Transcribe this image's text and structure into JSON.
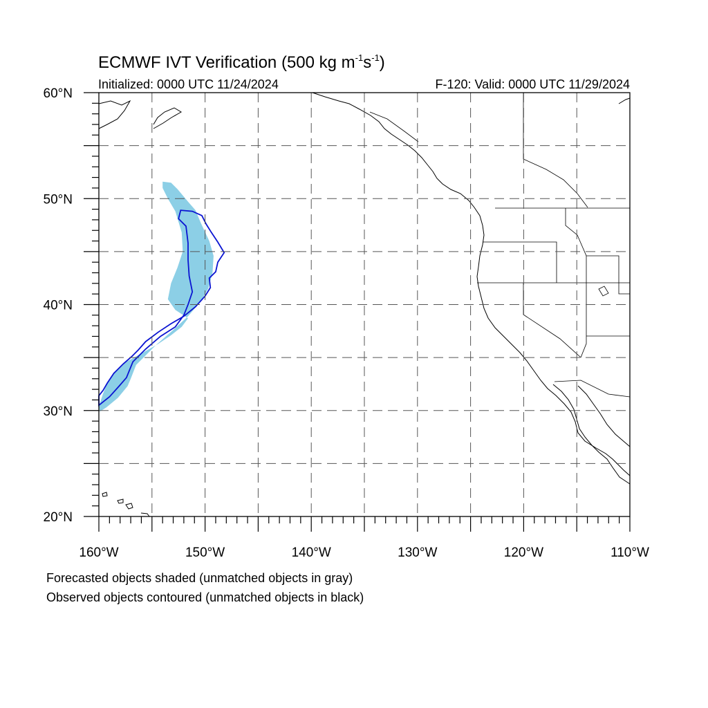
{
  "map": {
    "title": {
      "main": "ECMWF IVT Verification (500 kg m",
      "exp1": "-1",
      "mid": "s",
      "exp2": "-1",
      "close": ")"
    },
    "initialized": "Initialized: 0000 UTC 11/24/2024",
    "valid": "F-120: Valid: 0000 UTC 11/29/2024",
    "extent": {
      "lon": [
        -160,
        -110
      ],
      "lat": [
        20,
        60
      ]
    },
    "lat_labels": [
      {
        "value": 60,
        "text": "60°N"
      },
      {
        "value": 50,
        "text": "50°N"
      },
      {
        "value": 40,
        "text": "40°N"
      },
      {
        "value": 30,
        "text": "30°N"
      },
      {
        "value": 20,
        "text": "20°N"
      }
    ],
    "lon_labels": [
      {
        "value": -160,
        "text": "160°W"
      },
      {
        "value": -150,
        "text": "150°W"
      },
      {
        "value": -140,
        "text": "140°W"
      },
      {
        "value": -130,
        "text": "130°W"
      },
      {
        "value": -120,
        "text": "120°W"
      },
      {
        "value": -110,
        "text": "110°W"
      }
    ],
    "gridlines": {
      "lon": [
        -155,
        -150,
        -145,
        -140,
        -135,
        -130,
        -125,
        -120,
        -115
      ],
      "lat": [
        25,
        30,
        35,
        40,
        45,
        50,
        55
      ],
      "style": "dashed"
    },
    "colors": {
      "forecast_fill": "#8ccfe6",
      "observed_contour": "#0a14d2",
      "coastline": "#000000",
      "grid": "#555555"
    },
    "forecast_object": [
      [
        -154.0,
        51.6
      ],
      [
        -153.2,
        51.5
      ],
      [
        -152.6,
        50.9
      ],
      [
        -151.6,
        49.7
      ],
      [
        -150.9,
        48.9
      ],
      [
        -150.4,
        47.7
      ],
      [
        -149.6,
        46.0
      ],
      [
        -149.2,
        44.6
      ],
      [
        -149.3,
        43.0
      ],
      [
        -149.7,
        41.5
      ],
      [
        -150.4,
        40.3
      ],
      [
        -151.6,
        38.9
      ],
      [
        -153.0,
        37.6
      ],
      [
        -154.6,
        36.2
      ],
      [
        -155.6,
        35.2
      ],
      [
        -156.5,
        34.3
      ],
      [
        -157.0,
        33.0
      ],
      [
        -157.3,
        32.3
      ],
      [
        -158.2,
        31.2
      ],
      [
        -159.3,
        30.3
      ],
      [
        -159.9,
        29.9
      ],
      [
        -160.0,
        30.4
      ],
      [
        -159.6,
        31.6
      ],
      [
        -159.2,
        32.6
      ],
      [
        -158.6,
        33.6
      ],
      [
        -157.4,
        34.6
      ],
      [
        -155.8,
        35.5
      ],
      [
        -154.4,
        36.3
      ],
      [
        -153.2,
        37.1
      ],
      [
        -152.2,
        37.9
      ],
      [
        -151.6,
        38.7
      ],
      [
        -152.8,
        39.5
      ],
      [
        -153.5,
        40.5
      ],
      [
        -153.2,
        42.0
      ],
      [
        -152.6,
        43.5
      ],
      [
        -152.1,
        45.0
      ],
      [
        -152.2,
        46.8
      ],
      [
        -152.8,
        48.8
      ],
      [
        -153.5,
        50.0
      ],
      [
        -154.0,
        51.0
      ]
    ],
    "observed_object": [
      [
        -152.3,
        48.9
      ],
      [
        -151.2,
        48.8
      ],
      [
        -150.3,
        48.4
      ],
      [
        -149.9,
        47.6
      ],
      [
        -149.4,
        46.8
      ],
      [
        -148.8,
        45.9
      ],
      [
        -148.2,
        44.9
      ],
      [
        -148.8,
        44.0
      ],
      [
        -149.0,
        43.1
      ],
      [
        -149.6,
        42.5
      ],
      [
        -149.5,
        41.6
      ],
      [
        -150.0,
        40.8
      ],
      [
        -150.9,
        39.8
      ],
      [
        -152.0,
        38.9
      ],
      [
        -153.2,
        38.2
      ],
      [
        -154.4,
        37.4
      ],
      [
        -155.6,
        36.5
      ],
      [
        -156.3,
        35.7
      ],
      [
        -156.9,
        35.1
      ],
      [
        -157.7,
        34.4
      ],
      [
        -158.6,
        33.5
      ],
      [
        -159.2,
        32.6
      ],
      [
        -159.6,
        31.9
      ],
      [
        -160.0,
        31.4
      ],
      [
        -160.0,
        30.5
      ],
      [
        -159.0,
        31.3
      ],
      [
        -158.1,
        32.3
      ],
      [
        -157.4,
        33.1
      ],
      [
        -156.8,
        34.6
      ],
      [
        -155.6,
        35.8
      ],
      [
        -154.2,
        37.0
      ],
      [
        -152.8,
        37.9
      ],
      [
        -152.0,
        39.0
      ],
      [
        -151.6,
        40.0
      ],
      [
        -151.2,
        41.2
      ],
      [
        -151.5,
        42.7
      ],
      [
        -151.6,
        44.2
      ],
      [
        -151.6,
        45.8
      ],
      [
        -151.8,
        47.4
      ],
      [
        -152.5,
        48.1
      ]
    ]
  },
  "notes": {
    "line1": "Forecasted objects shaded (unmatched objects in gray)",
    "line2": "Observed objects contoured (unmatched objects in black)"
  }
}
